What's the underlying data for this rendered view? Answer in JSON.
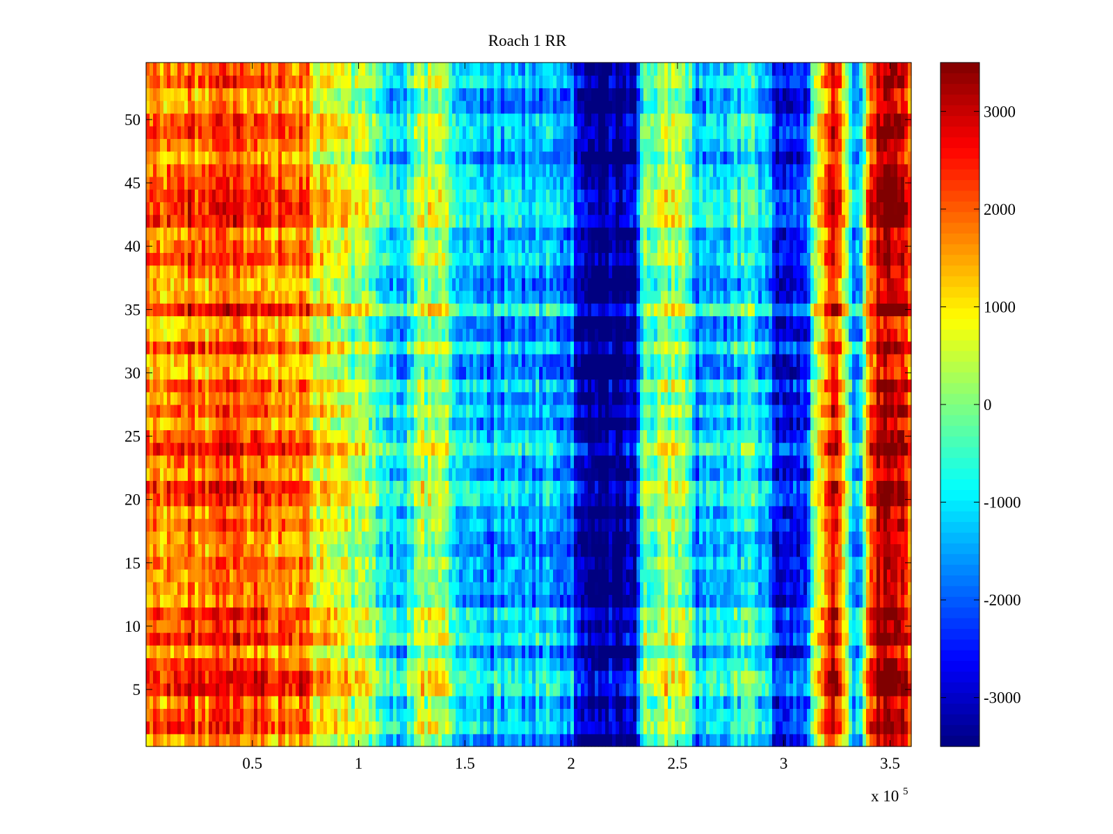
{
  "chart_data": {
    "type": "heatmap",
    "title": "Roach 1 RR",
    "xlabel": "",
    "ylabel": "",
    "x_multiplier_label": "x 10",
    "x_multiplier_exponent": "5",
    "xlim": [
      0,
      360000
    ],
    "ylim": [
      0.5,
      54.5
    ],
    "x_ticks": [
      {
        "value": 50000,
        "label": "0.5"
      },
      {
        "value": 100000,
        "label": "1"
      },
      {
        "value": 150000,
        "label": "1.5"
      },
      {
        "value": 200000,
        "label": "2"
      },
      {
        "value": 250000,
        "label": "2.5"
      },
      {
        "value": 300000,
        "label": "3"
      },
      {
        "value": 350000,
        "label": "3.5"
      }
    ],
    "y_ticks": [
      {
        "value": 5,
        "label": "5"
      },
      {
        "value": 10,
        "label": "10"
      },
      {
        "value": 15,
        "label": "15"
      },
      {
        "value": 20,
        "label": "20"
      },
      {
        "value": 25,
        "label": "25"
      },
      {
        "value": 30,
        "label": "30"
      },
      {
        "value": 35,
        "label": "35"
      },
      {
        "value": 40,
        "label": "40"
      },
      {
        "value": 45,
        "label": "45"
      },
      {
        "value": 50,
        "label": "50"
      }
    ],
    "rows": 54,
    "colorscale": "jet",
    "clim": [
      -3500,
      3500
    ],
    "colorbar": {
      "placement": "right",
      "ticks": [
        {
          "value": 3000,
          "label": "3000"
        },
        {
          "value": 2000,
          "label": "2000"
        },
        {
          "value": 1000,
          "label": "1000"
        },
        {
          "value": 0,
          "label": "0"
        },
        {
          "value": -1000,
          "label": "-1000"
        },
        {
          "value": -2000,
          "label": "-2000"
        },
        {
          "value": -3000,
          "label": "-3000"
        }
      ]
    },
    "column_profile": [
      {
        "x": 0,
        "value": 1800
      },
      {
        "x": 20000,
        "value": 1900
      },
      {
        "x": 40000,
        "value": 2000
      },
      {
        "x": 60000,
        "value": 1900
      },
      {
        "x": 75000,
        "value": 1700
      },
      {
        "x": 80000,
        "value": 900
      },
      {
        "x": 90000,
        "value": 700
      },
      {
        "x": 100000,
        "value": 300
      },
      {
        "x": 110000,
        "value": -300
      },
      {
        "x": 120000,
        "value": -1200
      },
      {
        "x": 130000,
        "value": 200
      },
      {
        "x": 140000,
        "value": 600
      },
      {
        "x": 145000,
        "value": -1000
      },
      {
        "x": 160000,
        "value": -1600
      },
      {
        "x": 180000,
        "value": -1300
      },
      {
        "x": 200000,
        "value": -1700
      },
      {
        "x": 205000,
        "value": -3300
      },
      {
        "x": 220000,
        "value": -3400
      },
      {
        "x": 230000,
        "value": -3000
      },
      {
        "x": 235000,
        "value": 0
      },
      {
        "x": 250000,
        "value": 300
      },
      {
        "x": 260000,
        "value": -1500
      },
      {
        "x": 275000,
        "value": -1000
      },
      {
        "x": 290000,
        "value": -900
      },
      {
        "x": 300000,
        "value": -3000
      },
      {
        "x": 310000,
        "value": -2500
      },
      {
        "x": 315000,
        "value": 800
      },
      {
        "x": 320000,
        "value": 1800
      },
      {
        "x": 325000,
        "value": 2800
      },
      {
        "x": 330000,
        "value": -200
      },
      {
        "x": 335000,
        "value": -1800
      },
      {
        "x": 340000,
        "value": 2000
      },
      {
        "x": 345000,
        "value": 3300
      },
      {
        "x": 355000,
        "value": 3400
      },
      {
        "x": 360000,
        "value": 1500
      }
    ]
  }
}
